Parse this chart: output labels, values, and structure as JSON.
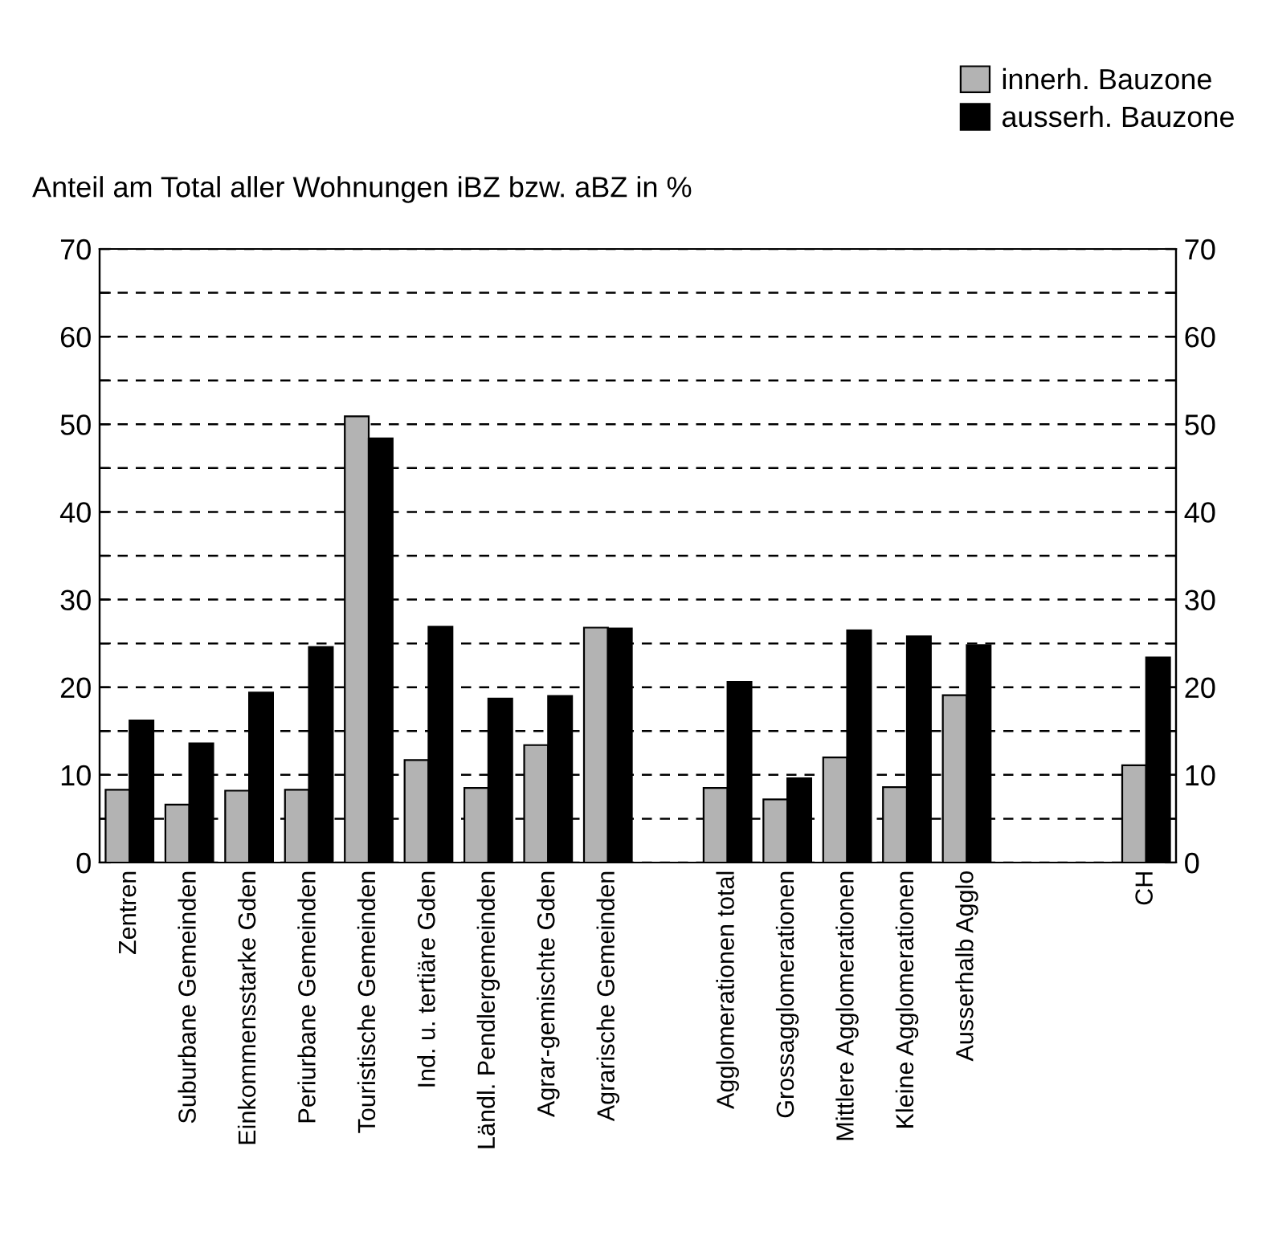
{
  "chart_data": {
    "type": "bar",
    "ylabel": "Anteil am Total aller Wohnungen iBZ bzw. aBZ in %",
    "categories": [
      "Zentren",
      "Suburbane Gemeinden",
      "Einkommensstarke Gden",
      "Periurbane Gemeinden",
      "Touristische Gemeinden",
      "Ind. u. tertiäre Gden",
      "Ländl. Pendlergemeinden",
      "Agrar-gemischte Gden",
      "Agrarische Gemeinden",
      null,
      "Agglomerationen total",
      "Grossagglomerationen",
      "Mittlere Agglomerationen",
      "Kleine Agglomerationen",
      "Ausserhalb Agglo",
      null,
      null,
      "CH"
    ],
    "series": [
      {
        "name": "innerh. Bauzone",
        "color": "#b3b3b3",
        "values": [
          8.3,
          6.6,
          8.2,
          8.3,
          50.9,
          11.7,
          8.5,
          13.4,
          26.8,
          null,
          8.5,
          7.2,
          12.0,
          8.6,
          19.1,
          null,
          null,
          11.1
        ]
      },
      {
        "name": "ausserh. Bauzone",
        "color": "#000000",
        "values": [
          16.2,
          13.6,
          19.4,
          24.6,
          48.4,
          26.9,
          18.7,
          19.0,
          26.7,
          null,
          20.6,
          9.6,
          26.5,
          25.8,
          24.8,
          null,
          null,
          23.4
        ]
      }
    ],
    "ylim": [
      0,
      70
    ],
    "yticks": [
      0,
      {
        "value": 5,
        "label": null
      },
      10,
      {
        "value": 15,
        "label": null
      },
      20,
      {
        "value": 25,
        "label": null
      },
      30,
      {
        "value": 35,
        "label": null
      },
      40,
      {
        "value": 45,
        "label": null
      },
      50,
      {
        "value": 55,
        "label": null
      },
      60,
      {
        "value": 65,
        "label": null
      },
      70
    ],
    "y2lim": [
      0,
      70
    ],
    "y2ticks": [
      0,
      {
        "value": 5,
        "label": null
      },
      10,
      {
        "value": 15,
        "label": null
      },
      20,
      {
        "value": 25,
        "label": null
      },
      30,
      {
        "value": 35,
        "label": null
      },
      40,
      {
        "value": 45,
        "label": null
      },
      50,
      {
        "value": 55,
        "label": null
      },
      60,
      {
        "value": 65,
        "label": null
      },
      70
    ],
    "grid": "y",
    "legend": "top right"
  }
}
